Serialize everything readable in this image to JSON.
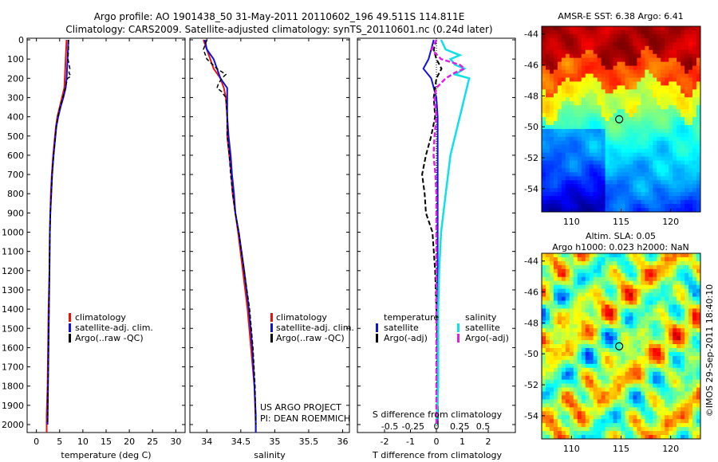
{
  "title_line1": "Argo profile: AO 1901438_50 31-May-2011 20110602_196 49.511S 114.811E",
  "title_line2": "Climatology: CARS2009. Satellite-adjusted climatology: synTS_20110601.nc (0.24d later)",
  "colors": {
    "climatology": "#e8140c",
    "satellite": "#1010e0",
    "argo": "#000000",
    "sal_satellite": "#10e0e8",
    "sal_argo": "#e020e0"
  },
  "depth_ticks": [
    "0",
    "100",
    "200",
    "300",
    "400",
    "500",
    "600",
    "700",
    "800",
    "900",
    "1000",
    "1100",
    "1200",
    "1300",
    "1400",
    "1500",
    "1600",
    "1700",
    "1800",
    "1900",
    "2000"
  ],
  "chart_data": [
    {
      "type": "line",
      "name": "temperature",
      "xlabel": "temperature (deg C)",
      "xticks": [
        "0",
        "5",
        "10",
        "15",
        "20",
        "25",
        "30"
      ],
      "xlim": [
        -2,
        32
      ],
      "ylim": [
        2050,
        0
      ],
      "legend": [
        "climatology",
        "satellite-adj. clim.",
        "Argo(..raw -QC)"
      ],
      "series": [
        {
          "name": "climatology",
          "depth": [
            0,
            50,
            100,
            150,
            200,
            250,
            300,
            350,
            400,
            450,
            500,
            600,
            700,
            800,
            900,
            1000,
            1200,
            1400,
            1600,
            1800,
            1950,
            2050
          ],
          "values": [
            6.5,
            6.4,
            6.3,
            6.2,
            6.1,
            6.0,
            5.5,
            5.0,
            4.5,
            4.2,
            4.0,
            3.6,
            3.3,
            3.1,
            3.0,
            2.9,
            2.8,
            2.6,
            2.5,
            2.4,
            2.2,
            2.2
          ]
        },
        {
          "name": "satellite-adj. clim.",
          "depth": [
            0,
            50,
            100,
            150,
            200,
            250,
            300,
            350,
            400,
            450,
            500,
            600,
            700,
            800,
            900,
            1000,
            1200,
            1400,
            1600,
            1800,
            2000
          ],
          "values": [
            6.9,
            6.8,
            6.7,
            6.6,
            6.5,
            6.3,
            5.8,
            5.2,
            4.7,
            4.3,
            4.1,
            3.7,
            3.4,
            3.2,
            3.0,
            2.9,
            2.8,
            2.7,
            2.6,
            2.5,
            2.4
          ]
        },
        {
          "name": "Argo(..raw -QC)",
          "depth": [
            0,
            50,
            100,
            150,
            170,
            190,
            200,
            250,
            300,
            350,
            400,
            450,
            500,
            600,
            700,
            800,
            900,
            1000,
            1200,
            1400,
            1600,
            1800,
            2000
          ],
          "values": [
            6.9,
            6.9,
            6.8,
            7.2,
            7.0,
            7.4,
            6.7,
            6.2,
            5.7,
            5.1,
            4.6,
            4.3,
            4.1,
            3.7,
            3.4,
            3.2,
            3.0,
            2.9,
            2.8,
            2.7,
            2.6,
            2.5,
            2.4
          ]
        }
      ]
    },
    {
      "type": "line",
      "name": "salinity",
      "xlabel": "salinity",
      "xticks": [
        "34",
        "34.5",
        "35",
        "35.5",
        "36"
      ],
      "xlim": [
        33.75,
        36.1
      ],
      "ylim": [
        2050,
        0
      ],
      "legend": [
        "climatology",
        "satellite-adj. clim.",
        "Argo(..raw -QC)"
      ],
      "annotation": [
        "US ARGO PROJECT",
        "PI: DEAN ROEMMICH"
      ],
      "series": [
        {
          "name": "climatology",
          "depth": [
            0,
            50,
            100,
            150,
            200,
            250,
            300,
            400,
            500,
            600,
            700,
            800,
            900,
            1000,
            1200,
            1400,
            1600,
            1800,
            2000,
            2050
          ],
          "values": [
            33.95,
            34.0,
            34.05,
            34.1,
            34.2,
            34.25,
            34.28,
            34.3,
            34.3,
            34.33,
            34.36,
            34.38,
            34.42,
            34.46,
            34.53,
            34.6,
            34.65,
            34.7,
            34.72,
            34.72
          ]
        },
        {
          "name": "satellite-adj. clim.",
          "depth": [
            0,
            50,
            100,
            150,
            200,
            250,
            300,
            400,
            500,
            600,
            700,
            800,
            900,
            1000,
            1200,
            1400,
            1600,
            1800,
            1950,
            2050
          ],
          "values": [
            33.97,
            34.0,
            34.1,
            34.15,
            34.2,
            34.3,
            34.3,
            34.3,
            34.32,
            34.35,
            34.37,
            34.4,
            34.42,
            34.47,
            34.55,
            34.62,
            34.67,
            34.7,
            34.72,
            34.72
          ]
        },
        {
          "name": "Argo(..raw -QC)",
          "depth": [
            0,
            50,
            100,
            150,
            180,
            200,
            230,
            250,
            270,
            300,
            400,
            500,
            600,
            700,
            800,
            900,
            1000,
            1200,
            1400,
            1600,
            1800,
            2000
          ],
          "values": [
            34.0,
            33.95,
            34.0,
            34.15,
            34.28,
            34.22,
            34.17,
            34.15,
            34.22,
            34.28,
            34.3,
            34.3,
            34.33,
            34.35,
            34.38,
            34.42,
            34.47,
            34.55,
            34.63,
            34.68,
            34.71,
            34.72
          ]
        }
      ]
    },
    {
      "type": "line",
      "name": "difference",
      "xlabel_top": "S difference from climatology",
      "xlabel": "T difference from climatology",
      "xticks_top": [
        "-0.5",
        "-0.25",
        "0",
        "0.25",
        "0.5"
      ],
      "xticks": [
        "-2",
        "-1",
        "0",
        "1",
        "2"
      ],
      "xlim": [
        -2.85,
        2.85
      ],
      "ylim": [
        2050,
        0
      ],
      "legend_headers": [
        "temperature",
        "salinity"
      ],
      "legend": [
        "satellite",
        "Argo(-adj)",
        "satellite",
        "Argo(-adj)"
      ],
      "series": [
        {
          "name": "temperature satellite",
          "depth": [
            0,
            50,
            100,
            150,
            200,
            300,
            400,
            600,
            800,
            1000,
            1200,
            1400,
            1600,
            1800,
            2000
          ],
          "values": [
            -0.1,
            -0.2,
            -0.3,
            -0.5,
            -0.2,
            0.0,
            0.05,
            0.05,
            0.05,
            0.05,
            0.05,
            0.05,
            0.05,
            0.05,
            0.05
          ]
        },
        {
          "name": "temperature Argo(-adj)",
          "depth": [
            0,
            50,
            100,
            150,
            200,
            300,
            400,
            500,
            600,
            700,
            800,
            900,
            1000,
            1200,
            1400,
            1600,
            1800,
            2000
          ],
          "values": [
            0.0,
            -0.1,
            0.0,
            0.2,
            0.0,
            -0.1,
            -0.05,
            -0.2,
            -0.4,
            -0.55,
            -0.45,
            -0.4,
            -0.15,
            -0.05,
            0.0,
            0.05,
            0.05,
            0.05
          ]
        },
        {
          "name": "salinity satellite",
          "depth": [
            0,
            50,
            80,
            100,
            130,
            150,
            180,
            200,
            300,
            400,
            600,
            800,
            1000,
            1200,
            1400,
            1600,
            1800,
            2000
          ],
          "values": [
            0.05,
            0.1,
            0.25,
            0.15,
            0.2,
            0.3,
            0.2,
            0.35,
            0.3,
            0.25,
            0.15,
            0.1,
            0.05,
            0.03,
            0.02,
            0.02,
            0.02,
            0.0
          ]
        },
        {
          "name": "salinity Argo(-adj)",
          "depth": [
            0,
            50,
            100,
            130,
            150,
            170,
            200,
            250,
            300,
            400,
            500,
            600,
            700,
            800,
            1000,
            1400,
            2000
          ],
          "values": [
            0.0,
            -0.05,
            0.05,
            0.25,
            0.3,
            0.2,
            0.1,
            0.0,
            -0.02,
            0.0,
            -0.02,
            -0.03,
            -0.01,
            0.0,
            0.0,
            0.0,
            0.0
          ]
        }
      ]
    },
    {
      "type": "heatmap",
      "name": "sst-map",
      "title": "AMSR-E SST: 6.38  Argo: 6.41",
      "xticks": [
        "110",
        "115",
        "120"
      ],
      "yticks": [
        "-44",
        "-46",
        "-48",
        "-50",
        "-52",
        "-54"
      ],
      "xlim": [
        107,
        123
      ],
      "ylim": [
        -55.5,
        -43.5
      ],
      "marker": {
        "lon": 114.811,
        "lat": -49.511
      }
    },
    {
      "type": "heatmap",
      "name": "sla-map",
      "title_line1": "Altim. SLA: 0.05",
      "title_line2": "Argo h1000: 0.023  h2000: NaN",
      "xticks": [
        "110",
        "115",
        "120"
      ],
      "yticks": [
        "-44",
        "-46",
        "-48",
        "-50",
        "-52",
        "-54"
      ],
      "xlim": [
        107,
        123
      ],
      "ylim": [
        -55.5,
        -43.5
      ],
      "marker": {
        "lon": 114.811,
        "lat": -49.511
      }
    }
  ],
  "footer_note": "©IMOS 29-Sep-2011 18:40:10"
}
